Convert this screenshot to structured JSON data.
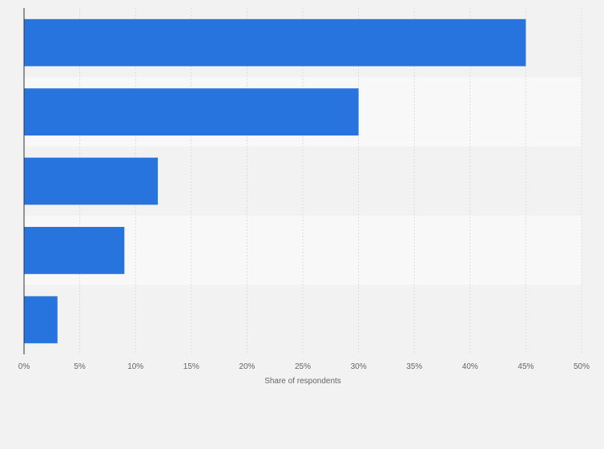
{
  "chart_data": {
    "type": "bar",
    "orientation": "horizontal",
    "categories": [
      "",
      "",
      "",
      "",
      ""
    ],
    "values": [
      45,
      30,
      12,
      9,
      3
    ],
    "xlabel": "Share of respondents",
    "ylabel": "",
    "xlim": [
      0,
      50
    ],
    "x_ticks": [
      "0%",
      "5%",
      "10%",
      "15%",
      "20%",
      "25%",
      "30%",
      "35%",
      "40%",
      "45%",
      "50%"
    ],
    "grid": true,
    "legend": "none",
    "colors": {
      "bar": "#2874de",
      "band_dark": "#f2f2f2",
      "band_light": "#f8f8f8",
      "grid": "#dddddd",
      "axis": "#333333"
    }
  }
}
